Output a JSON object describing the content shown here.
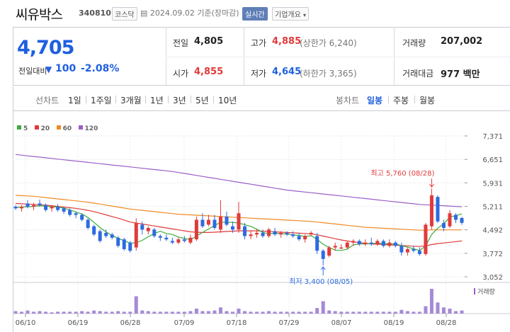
{
  "header": {
    "name": "씨유박스",
    "code": "340810",
    "market": "코스닥",
    "date": "2024.09.02",
    "basis": "기준(장마감)",
    "live_label": "실시간",
    "info_label": "기업개요"
  },
  "summary": {
    "price": "4,705",
    "change_label": "전일대비",
    "change_arrow": "▼",
    "change_value": "100",
    "change_pct": "-2.08%",
    "prev_close_label": "전일",
    "prev_close": "4,805",
    "high_label": "고가",
    "high": "4,885",
    "upper_limit": "(상한가 6,240)",
    "volume_label": "거래량",
    "volume": "207,002",
    "open_label": "시가",
    "open": "4,855",
    "low_label": "저가",
    "low": "4,645",
    "lower_limit": "(하한가 3,365)",
    "amount_label": "거래대금",
    "amount": "977 백만"
  },
  "periods": {
    "line_label": "선차트",
    "line_items": [
      "1일",
      "1주일",
      "3개월",
      "1년",
      "3년",
      "5년",
      "10년"
    ],
    "candle_label": "봉차트",
    "candle_items": [
      "일봉",
      "주봉",
      "월봉"
    ],
    "active_candle": "일봉"
  },
  "colors": {
    "up": "#e03a3a",
    "down": "#2d6be0",
    "ma5": "#3cab3c",
    "ma20": "#e03a3a",
    "ma60": "#f08a24",
    "ma120": "#9b5fc8"
  },
  "chart_data": {
    "type": "candlestick",
    "legend": [
      "5",
      "20",
      "60",
      "120"
    ],
    "y_ticks": [
      "7,371",
      "6,651",
      "5,931",
      "5,211",
      "4,492",
      "3,772",
      "3,052"
    ],
    "ylim": [
      3052,
      7371
    ],
    "x_ticks": [
      "06/10",
      "06/19",
      "06/28",
      "07/09",
      "07/18",
      "07/29",
      "08/07",
      "08/19",
      "08/28"
    ],
    "max_annotation": "최고 5,760 (08/28)",
    "min_annotation": "최저 3,400 (08/05)",
    "volume_label": "거래량",
    "candles": [
      [
        5200,
        5250,
        5100,
        5150
      ],
      [
        5150,
        5250,
        5050,
        5200
      ],
      [
        5300,
        5400,
        5150,
        5200
      ],
      [
        5200,
        5320,
        5100,
        5250
      ],
      [
        5300,
        5420,
        5200,
        5250
      ],
      [
        5250,
        5300,
        5050,
        5100
      ],
      [
        5150,
        5250,
        5050,
        5200
      ],
      [
        5200,
        5280,
        5050,
        5100
      ],
      [
        5150,
        5200,
        4980,
        5050
      ],
      [
        5100,
        5150,
        4900,
        4950
      ],
      [
        5000,
        5050,
        4850,
        4950
      ],
      [
        4950,
        5000,
        4750,
        4800
      ],
      [
        4800,
        4850,
        4500,
        4550
      ],
      [
        4600,
        4650,
        4300,
        4350
      ],
      [
        4450,
        4500,
        4100,
        4150
      ],
      [
        4400,
        4500,
        4250,
        4300
      ],
      [
        4350,
        4400,
        4200,
        4250
      ],
      [
        4250,
        4300,
        3950,
        4000
      ],
      [
        4200,
        4250,
        3850,
        3900
      ],
      [
        4100,
        4150,
        3800,
        3850
      ],
      [
        3950,
        4850,
        3850,
        4700
      ],
      [
        4650,
        4750,
        4350,
        4500
      ],
      [
        4450,
        4600,
        4350,
        4550
      ],
      [
        4500,
        4550,
        4250,
        4300
      ],
      [
        4300,
        4350,
        4150,
        4250
      ],
      [
        4250,
        4350,
        4150,
        4200
      ],
      [
        4150,
        4250,
        4050,
        4100
      ],
      [
        4100,
        4250,
        4050,
        4200
      ],
      [
        4200,
        4300,
        4100,
        4150
      ],
      [
        4100,
        4350,
        4050,
        4250
      ],
      [
        4200,
        4900,
        4150,
        4800
      ],
      [
        4800,
        5000,
        4550,
        4600
      ],
      [
        4650,
        4950,
        4600,
        4800
      ],
      [
        4800,
        4950,
        4500,
        4550
      ],
      [
        4500,
        5400,
        4400,
        4900
      ],
      [
        4900,
        5050,
        4600,
        4650
      ],
      [
        4600,
        4750,
        4400,
        4500
      ],
      [
        4500,
        5350,
        4400,
        5000
      ],
      [
        4600,
        4700,
        4200,
        4300
      ],
      [
        4300,
        4450,
        4200,
        4350
      ],
      [
        4350,
        4500,
        4250,
        4400
      ],
      [
        4400,
        4500,
        4250,
        4300
      ],
      [
        4300,
        4550,
        4250,
        4500
      ],
      [
        4450,
        4550,
        4300,
        4350
      ],
      [
        4350,
        4450,
        4250,
        4400
      ],
      [
        4400,
        4450,
        4300,
        4350
      ],
      [
        4350,
        4450,
        4250,
        4300
      ],
      [
        4300,
        4400,
        4150,
        4200
      ],
      [
        4200,
        4350,
        4100,
        4300
      ],
      [
        4350,
        4450,
        4300,
        4400
      ],
      [
        4300,
        4400,
        3750,
        3850
      ],
      [
        3850,
        3900,
        3400,
        3600
      ],
      [
        3700,
        4000,
        3650,
        3950
      ],
      [
        3950,
        4100,
        3850,
        4000
      ],
      [
        3950,
        4050,
        3900,
        3950
      ],
      [
        3950,
        4150,
        3900,
        4100
      ],
      [
        4100,
        4200,
        4000,
        4150
      ],
      [
        4150,
        4200,
        4000,
        4050
      ],
      [
        4050,
        4200,
        4000,
        4100
      ],
      [
        4100,
        4250,
        4000,
        4050
      ],
      [
        4050,
        4200,
        4000,
        4150
      ],
      [
        4150,
        4200,
        3950,
        4000
      ],
      [
        4000,
        4200,
        3950,
        4100
      ],
      [
        4100,
        4150,
        3950,
        4000
      ],
      [
        4000,
        4100,
        3700,
        3800
      ],
      [
        3800,
        3950,
        3700,
        3900
      ],
      [
        3900,
        4000,
        3800,
        3850
      ],
      [
        3850,
        3950,
        3700,
        3750
      ],
      [
        3750,
        4700,
        3700,
        4650
      ],
      [
        4600,
        5760,
        4500,
        5550
      ],
      [
        5500,
        5550,
        4700,
        4750
      ],
      [
        4700,
        4800,
        4450,
        4550
      ],
      [
        4600,
        5100,
        4550,
        5000
      ],
      [
        4950,
        5000,
        4700,
        4800
      ],
      [
        4855,
        4885,
        4645,
        4705
      ]
    ],
    "volumes": [
      4,
      3,
      5,
      3,
      4,
      3,
      2,
      3,
      3,
      3,
      3,
      4,
      3,
      5,
      4,
      3,
      3,
      4,
      3,
      3,
      28,
      5,
      4,
      3,
      3,
      3,
      3,
      3,
      3,
      4,
      8,
      4,
      4,
      5,
      10,
      4,
      3,
      8,
      4,
      3,
      3,
      3,
      4,
      3,
      3,
      3,
      3,
      3,
      3,
      3,
      9,
      20,
      5,
      4,
      3,
      3,
      3,
      3,
      3,
      3,
      3,
      3,
      3,
      3,
      6,
      4,
      3,
      3,
      12,
      40,
      18,
      10,
      8,
      4,
      5
    ],
    "ma5": [
      5180,
      5190,
      5200,
      5210,
      5230,
      5220,
      5200,
      5190,
      5160,
      5100,
      5040,
      4980,
      4870,
      4720,
      4560,
      4430,
      4320,
      4230,
      4160,
      4080,
      4100,
      4170,
      4280,
      4380,
      4450,
      4380,
      4350,
      4270,
      4230,
      4190,
      4300,
      4410,
      4520,
      4620,
      4730,
      4720,
      4720,
      4700,
      4650,
      4600,
      4510,
      4410,
      4370,
      4390,
      4370,
      4360,
      4340,
      4320,
      4290,
      4310,
      4200,
      4050,
      3950,
      3870,
      3860,
      3900,
      4030,
      4060,
      4060,
      4070,
      4080,
      4070,
      4060,
      4060,
      4010,
      3960,
      3910,
      3860,
      4000,
      4350,
      4540,
      4680,
      4880,
      4930,
      4980
    ],
    "ma20": [
      5300,
      5290,
      5280,
      5270,
      5260,
      5250,
      5230,
      5210,
      5190,
      5170,
      5150,
      5120,
      5090,
      5050,
      5000,
      4950,
      4900,
      4850,
      4790,
      4730,
      4700,
      4670,
      4640,
      4610,
      4580,
      4550,
      4520,
      4490,
      4460,
      4430,
      4420,
      4410,
      4410,
      4420,
      4430,
      4440,
      4450,
      4460,
      4460,
      4460,
      4460,
      4450,
      4440,
      4430,
      4420,
      4410,
      4400,
      4390,
      4380,
      4370,
      4340,
      4300,
      4260,
      4220,
      4180,
      4150,
      4120,
      4100,
      4080,
      4060,
      4050,
      4040,
      4030,
      4020,
      4010,
      4000,
      3990,
      3980,
      4000,
      4040,
      4070,
      4090,
      4110,
      4130,
      4150
    ],
    "ma60": [
      5550,
      5540,
      5530,
      5520,
      5500,
      5480,
      5460,
      5440,
      5420,
      5400,
      5380,
      5360,
      5340,
      5310,
      5280,
      5250,
      5220,
      5190,
      5160,
      5130,
      5110,
      5090,
      5070,
      5050,
      5030,
      5010,
      4990,
      4970,
      4960,
      4950,
      4940,
      4930,
      4920,
      4910,
      4900,
      4890,
      4880,
      4870,
      4860,
      4850,
      4840,
      4830,
      4820,
      4810,
      4800,
      4790,
      4780,
      4770,
      4760,
      4750,
      4730,
      4710,
      4690,
      4670,
      4650,
      4630,
      4610,
      4590,
      4570,
      4560,
      4550,
      4540,
      4530,
      4520,
      4510,
      4500,
      4490,
      4480,
      4480,
      4490,
      4490,
      4490,
      4490,
      4490,
      4490
    ],
    "ma120": [
      6800,
      6780,
      6760,
      6740,
      6720,
      6700,
      6680,
      6660,
      6640,
      6620,
      6600,
      6580,
      6560,
      6540,
      6520,
      6500,
      6480,
      6460,
      6440,
      6420,
      6400,
      6380,
      6360,
      6340,
      6320,
      6300,
      6280,
      6250,
      6220,
      6190,
      6160,
      6130,
      6100,
      6070,
      6040,
      6010,
      5980,
      5950,
      5920,
      5890,
      5860,
      5830,
      5800,
      5770,
      5740,
      5710,
      5690,
      5670,
      5650,
      5630,
      5610,
      5590,
      5570,
      5550,
      5530,
      5510,
      5490,
      5470,
      5450,
      5430,
      5410,
      5390,
      5370,
      5350,
      5330,
      5310,
      5290,
      5270,
      5260,
      5250,
      5240,
      5230,
      5220,
      5210,
      5200
    ]
  }
}
